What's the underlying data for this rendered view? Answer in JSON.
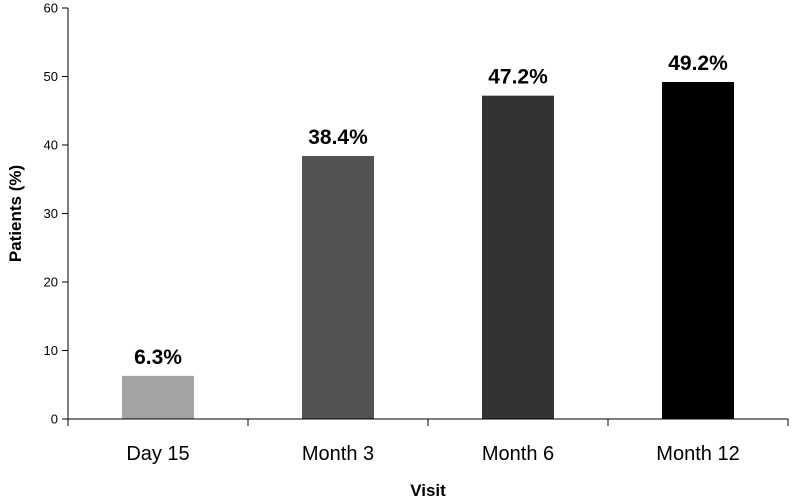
{
  "chart_data": {
    "type": "bar",
    "title": "",
    "xlabel": "Visit",
    "ylabel": "Patients (%)",
    "categories": [
      "Day 15",
      "Month 3",
      "Month 6",
      "Month 12"
    ],
    "values": [
      6.3,
      38.4,
      47.2,
      49.2
    ],
    "data_labels": [
      "6.3%",
      "38.4%",
      "47.2%",
      "49.2%"
    ],
    "bar_colors": [
      "#a3a3a3",
      "#525252",
      "#333333",
      "#000000"
    ],
    "ylim": [
      0,
      60
    ],
    "yticks": [
      0,
      10,
      20,
      30,
      40,
      50,
      60
    ],
    "grid": false,
    "legend": "none"
  }
}
